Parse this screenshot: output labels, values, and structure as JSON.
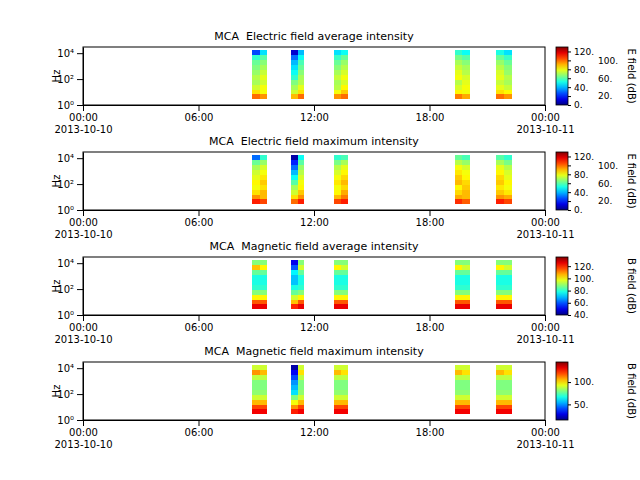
{
  "chart_data": [
    {
      "type": "heatmap",
      "title": "MCA  Electric field average intensity",
      "y_label": "Hz",
      "log": "y",
      "xlim": [
        "2013-10-10 00:00",
        "2013-10-11 00:00"
      ],
      "xticks": [
        {
          "value": "2013-10-10 00:00",
          "label": "00:00\n2013-10-10"
        },
        {
          "value": "2013-10-10 06:00",
          "label": "06:00"
        },
        {
          "value": "2013-10-10 12:00",
          "label": "12:00"
        },
        {
          "value": "2013-10-10 18:00",
          "label": "18:00"
        },
        {
          "value": "2013-10-11 00:00",
          "label": "00:00\n2013-10-11"
        }
      ],
      "ylim": [
        1,
        30000
      ],
      "yticks": [
        {
          "value": 1,
          "label": "10⁰"
        },
        {
          "value": 100,
          "label": "10²"
        },
        {
          "value": 10000,
          "label": "10⁴"
        }
      ],
      "x_start": [
        "2013-10-10 08:47",
        "2013-10-10 09:11",
        "2013-10-10 10:48",
        "2013-10-10 11:09",
        "2013-10-10 13:02",
        "2013-10-10 13:24",
        "2013-10-10 19:19",
        "2013-10-10 19:42",
        "2013-10-10 21:27",
        "2013-10-10 21:52"
      ],
      "x_end": [
        "2013-10-10 09:11",
        "2013-10-10 09:35",
        "2013-10-10 11:09",
        "2013-10-10 11:30",
        "2013-10-10 13:24",
        "2013-10-10 13:46",
        "2013-10-10 19:42",
        "2013-10-10 20:06",
        "2013-10-10 21:52",
        "2013-10-10 22:17"
      ],
      "y_edges": [
        3,
        7,
        15,
        35,
        80,
        200,
        500,
        1200,
        3000,
        7500,
        17000
      ],
      "values": [
        [
          100,
          95,
          90,
          100,
          95,
          100,
          98,
          92,
          100,
          95
        ],
        [
          85,
          80,
          75,
          85,
          80,
          88,
          82,
          80,
          85,
          82
        ],
        [
          75,
          80,
          70,
          78,
          72,
          82,
          76,
          80,
          78,
          74
        ],
        [
          70,
          75,
          65,
          72,
          70,
          76,
          72,
          78,
          74,
          70
        ],
        [
          72,
          78,
          55,
          70,
          74,
          80,
          80,
          76,
          78,
          72
        ],
        [
          68,
          74,
          50,
          66,
          70,
          76,
          78,
          72,
          76,
          68
        ],
        [
          65,
          70,
          45,
          62,
          66,
          72,
          74,
          70,
          72,
          66
        ],
        [
          62,
          66,
          40,
          58,
          62,
          68,
          70,
          66,
          68,
          62
        ],
        [
          55,
          60,
          30,
          50,
          56,
          62,
          64,
          60,
          62,
          56
        ],
        [
          25,
          45,
          10,
          40,
          45,
          50,
          55,
          50,
          52,
          45
        ]
      ],
      "colorbar_label": "E field (dB)",
      "colorbar_lim": [
        0,
        130
      ],
      "colorbar_ticks": [
        {
          "value": 0,
          "label": "0."
        },
        {
          "value": 20,
          "label": "20."
        },
        {
          "value": 40,
          "label": "40."
        },
        {
          "value": 60,
          "label": "60."
        },
        {
          "value": 80,
          "label": "80."
        },
        {
          "value": 100,
          "label": "100."
        },
        {
          "value": 120,
          "label": "120."
        }
      ]
    },
    {
      "type": "heatmap",
      "title": "MCA  Electric field maximum intensity",
      "y_label": "Hz",
      "log": "y",
      "xlim": [
        "2013-10-10 00:00",
        "2013-10-11 00:00"
      ],
      "xticks": [
        {
          "value": "2013-10-10 00:00",
          "label": "00:00\n2013-10-10"
        },
        {
          "value": "2013-10-10 06:00",
          "label": "06:00"
        },
        {
          "value": "2013-10-10 12:00",
          "label": "12:00"
        },
        {
          "value": "2013-10-10 18:00",
          "label": "18:00"
        },
        {
          "value": "2013-10-11 00:00",
          "label": "00:00\n2013-10-11"
        }
      ],
      "ylim": [
        1,
        30000
      ],
      "yticks": [
        {
          "value": 1,
          "label": "10⁰"
        },
        {
          "value": 100,
          "label": "10²"
        },
        {
          "value": 10000,
          "label": "10⁴"
        }
      ],
      "x_start": [
        "2013-10-10 08:47",
        "2013-10-10 09:11",
        "2013-10-10 10:48",
        "2013-10-10 11:09",
        "2013-10-10 13:02",
        "2013-10-10 13:24",
        "2013-10-10 19:19",
        "2013-10-10 19:42",
        "2013-10-10 21:27",
        "2013-10-10 21:52"
      ],
      "x_end": [
        "2013-10-10 09:11",
        "2013-10-10 09:35",
        "2013-10-10 11:09",
        "2013-10-10 11:30",
        "2013-10-10 13:24",
        "2013-10-10 13:46",
        "2013-10-10 19:42",
        "2013-10-10 20:06",
        "2013-10-10 21:52",
        "2013-10-10 22:17"
      ],
      "y_edges": [
        3,
        7,
        15,
        35,
        80,
        200,
        500,
        1200,
        3000,
        7500,
        17000
      ],
      "values": [
        [
          110,
          105,
          100,
          110,
          105,
          110,
          108,
          102,
          110,
          105
        ],
        [
          95,
          90,
          85,
          95,
          90,
          98,
          92,
          90,
          95,
          92
        ],
        [
          85,
          90,
          75,
          88,
          82,
          92,
          86,
          90,
          88,
          84
        ],
        [
          80,
          85,
          70,
          82,
          80,
          86,
          82,
          88,
          84,
          80
        ],
        [
          82,
          88,
          60,
          80,
          84,
          90,
          90,
          86,
          88,
          82
        ],
        [
          78,
          84,
          50,
          76,
          80,
          86,
          88,
          82,
          86,
          78
        ],
        [
          75,
          80,
          40,
          72,
          76,
          82,
          84,
          80,
          82,
          76
        ],
        [
          70,
          76,
          30,
          68,
          72,
          78,
          80,
          76,
          78,
          72
        ],
        [
          62,
          68,
          20,
          60,
          64,
          70,
          72,
          68,
          70,
          64
        ],
        [
          30,
          55,
          5,
          50,
          55,
          58,
          62,
          58,
          60,
          55
        ]
      ],
      "colorbar_label": "E field (dB)",
      "colorbar_lim": [
        0,
        130
      ],
      "colorbar_ticks": [
        {
          "value": 0,
          "label": "0."
        },
        {
          "value": 20,
          "label": "20."
        },
        {
          "value": 40,
          "label": "40."
        },
        {
          "value": 60,
          "label": "60."
        },
        {
          "value": 80,
          "label": "80."
        },
        {
          "value": 100,
          "label": "100."
        },
        {
          "value": 120,
          "label": "120."
        }
      ]
    },
    {
      "type": "heatmap",
      "title": "MCA  Magnetic field average intensity",
      "y_label": "Hz",
      "log": "y",
      "xlim": [
        "2013-10-10 00:00",
        "2013-10-11 00:00"
      ],
      "xticks": [
        {
          "value": "2013-10-10 00:00",
          "label": "00:00\n2013-10-10"
        },
        {
          "value": "2013-10-10 06:00",
          "label": "06:00"
        },
        {
          "value": "2013-10-10 12:00",
          "label": "12:00"
        },
        {
          "value": "2013-10-10 18:00",
          "label": "18:00"
        },
        {
          "value": "2013-10-11 00:00",
          "label": "00:00\n2013-10-11"
        }
      ],
      "ylim": [
        1,
        30000
      ],
      "yticks": [
        {
          "value": 1,
          "label": "10⁰"
        },
        {
          "value": 100,
          "label": "10²"
        },
        {
          "value": 10000,
          "label": "10⁴"
        }
      ],
      "x_start": [
        "2013-10-10 08:47",
        "2013-10-10 09:11",
        "2013-10-10 10:48",
        "2013-10-10 11:09",
        "2013-10-10 13:02",
        "2013-10-10 13:24",
        "2013-10-10 19:19",
        "2013-10-10 19:42",
        "2013-10-10 21:27",
        "2013-10-10 21:52"
      ],
      "x_end": [
        "2013-10-10 09:11",
        "2013-10-10 09:35",
        "2013-10-10 11:09",
        "2013-10-10 11:30",
        "2013-10-10 13:24",
        "2013-10-10 13:46",
        "2013-10-10 19:42",
        "2013-10-10 20:06",
        "2013-10-10 21:52",
        "2013-10-10 22:17"
      ],
      "y_edges": [
        3,
        7,
        15,
        35,
        80,
        200,
        500,
        1200,
        3000,
        7500,
        17000
      ],
      "values": [
        [
          125,
          125,
          120,
          125,
          125,
          125,
          125,
          125,
          125,
          125
        ],
        [
          115,
          115,
          105,
          115,
          115,
          115,
          115,
          115,
          115,
          115
        ],
        [
          100,
          100,
          95,
          100,
          100,
          100,
          100,
          100,
          100,
          100
        ],
        [
          88,
          88,
          85,
          88,
          88,
          88,
          88,
          88,
          88,
          88
        ],
        [
          80,
          80,
          78,
          80,
          80,
          80,
          80,
          80,
          80,
          80
        ],
        [
          78,
          78,
          70,
          78,
          78,
          78,
          78,
          78,
          78,
          78
        ],
        [
          78,
          78,
          70,
          78,
          78,
          78,
          78,
          78,
          78,
          78
        ],
        [
          85,
          85,
          75,
          85,
          85,
          85,
          85,
          85,
          85,
          85
        ],
        [
          105,
          100,
          60,
          95,
          100,
          95,
          100,
          95,
          100,
          95
        ],
        [
          88,
          88,
          50,
          88,
          88,
          88,
          88,
          88,
          88,
          88
        ]
      ],
      "colorbar_label": "B field (dB)",
      "colorbar_lim": [
        40,
        135
      ],
      "colorbar_ticks": [
        {
          "value": 40,
          "label": "40."
        },
        {
          "value": 60,
          "label": "60."
        },
        {
          "value": 80,
          "label": "80."
        },
        {
          "value": 100,
          "label": "100."
        },
        {
          "value": 120,
          "label": "120."
        }
      ]
    },
    {
      "type": "heatmap",
      "title": "MCA  Magnetic field maximum intensity",
      "y_label": "Hz",
      "log": "y",
      "xlim": [
        "2013-10-10 00:00",
        "2013-10-11 00:00"
      ],
      "xticks": [
        {
          "value": "2013-10-10 00:00",
          "label": "00:00\n2013-10-10"
        },
        {
          "value": "2013-10-10 06:00",
          "label": "06:00"
        },
        {
          "value": "2013-10-10 12:00",
          "label": "12:00"
        },
        {
          "value": "2013-10-10 18:00",
          "label": "18:00"
        },
        {
          "value": "2013-10-11 00:00",
          "label": "00:00\n2013-10-11"
        }
      ],
      "ylim": [
        1,
        30000
      ],
      "yticks": [
        {
          "value": 1,
          "label": "10⁰"
        },
        {
          "value": 100,
          "label": "10²"
        },
        {
          "value": 10000,
          "label": "10⁴"
        }
      ],
      "x_start": [
        "2013-10-10 08:47",
        "2013-10-10 09:11",
        "2013-10-10 10:48",
        "2013-10-10 11:09",
        "2013-10-10 13:02",
        "2013-10-10 13:24",
        "2013-10-10 19:19",
        "2013-10-10 19:42",
        "2013-10-10 21:27",
        "2013-10-10 21:52"
      ],
      "x_end": [
        "2013-10-10 09:11",
        "2013-10-10 09:35",
        "2013-10-10 11:09",
        "2013-10-10 11:30",
        "2013-10-10 13:24",
        "2013-10-10 13:46",
        "2013-10-10 19:42",
        "2013-10-10 20:06",
        "2013-10-10 21:52",
        "2013-10-10 22:17"
      ],
      "y_edges": [
        3,
        7,
        15,
        35,
        80,
        200,
        500,
        1200,
        3000,
        7500,
        17000
      ],
      "values": [
        [
          130,
          130,
          125,
          130,
          130,
          130,
          130,
          130,
          130,
          130
        ],
        [
          120,
          120,
          110,
          120,
          120,
          120,
          120,
          120,
          120,
          120
        ],
        [
          105,
          105,
          95,
          105,
          105,
          105,
          105,
          105,
          105,
          105
        ],
        [
          90,
          90,
          80,
          90,
          90,
          90,
          90,
          90,
          90,
          90
        ],
        [
          82,
          82,
          60,
          82,
          82,
          82,
          82,
          82,
          82,
          82
        ],
        [
          80,
          80,
          55,
          80,
          80,
          80,
          80,
          80,
          80,
          80
        ],
        [
          80,
          80,
          50,
          80,
          80,
          80,
          80,
          80,
          80,
          80
        ],
        [
          88,
          88,
          40,
          88,
          88,
          88,
          88,
          88,
          88,
          88
        ],
        [
          110,
          105,
          30,
          100,
          105,
          100,
          105,
          100,
          105,
          100
        ],
        [
          90,
          90,
          20,
          90,
          90,
          90,
          90,
          90,
          90,
          90
        ]
      ],
      "colorbar_label": "B field (dB)",
      "colorbar_lim": [
        15,
        145
      ],
      "colorbar_ticks": [
        {
          "value": 50,
          "label": "50."
        },
        {
          "value": 100,
          "label": "100."
        }
      ]
    }
  ]
}
